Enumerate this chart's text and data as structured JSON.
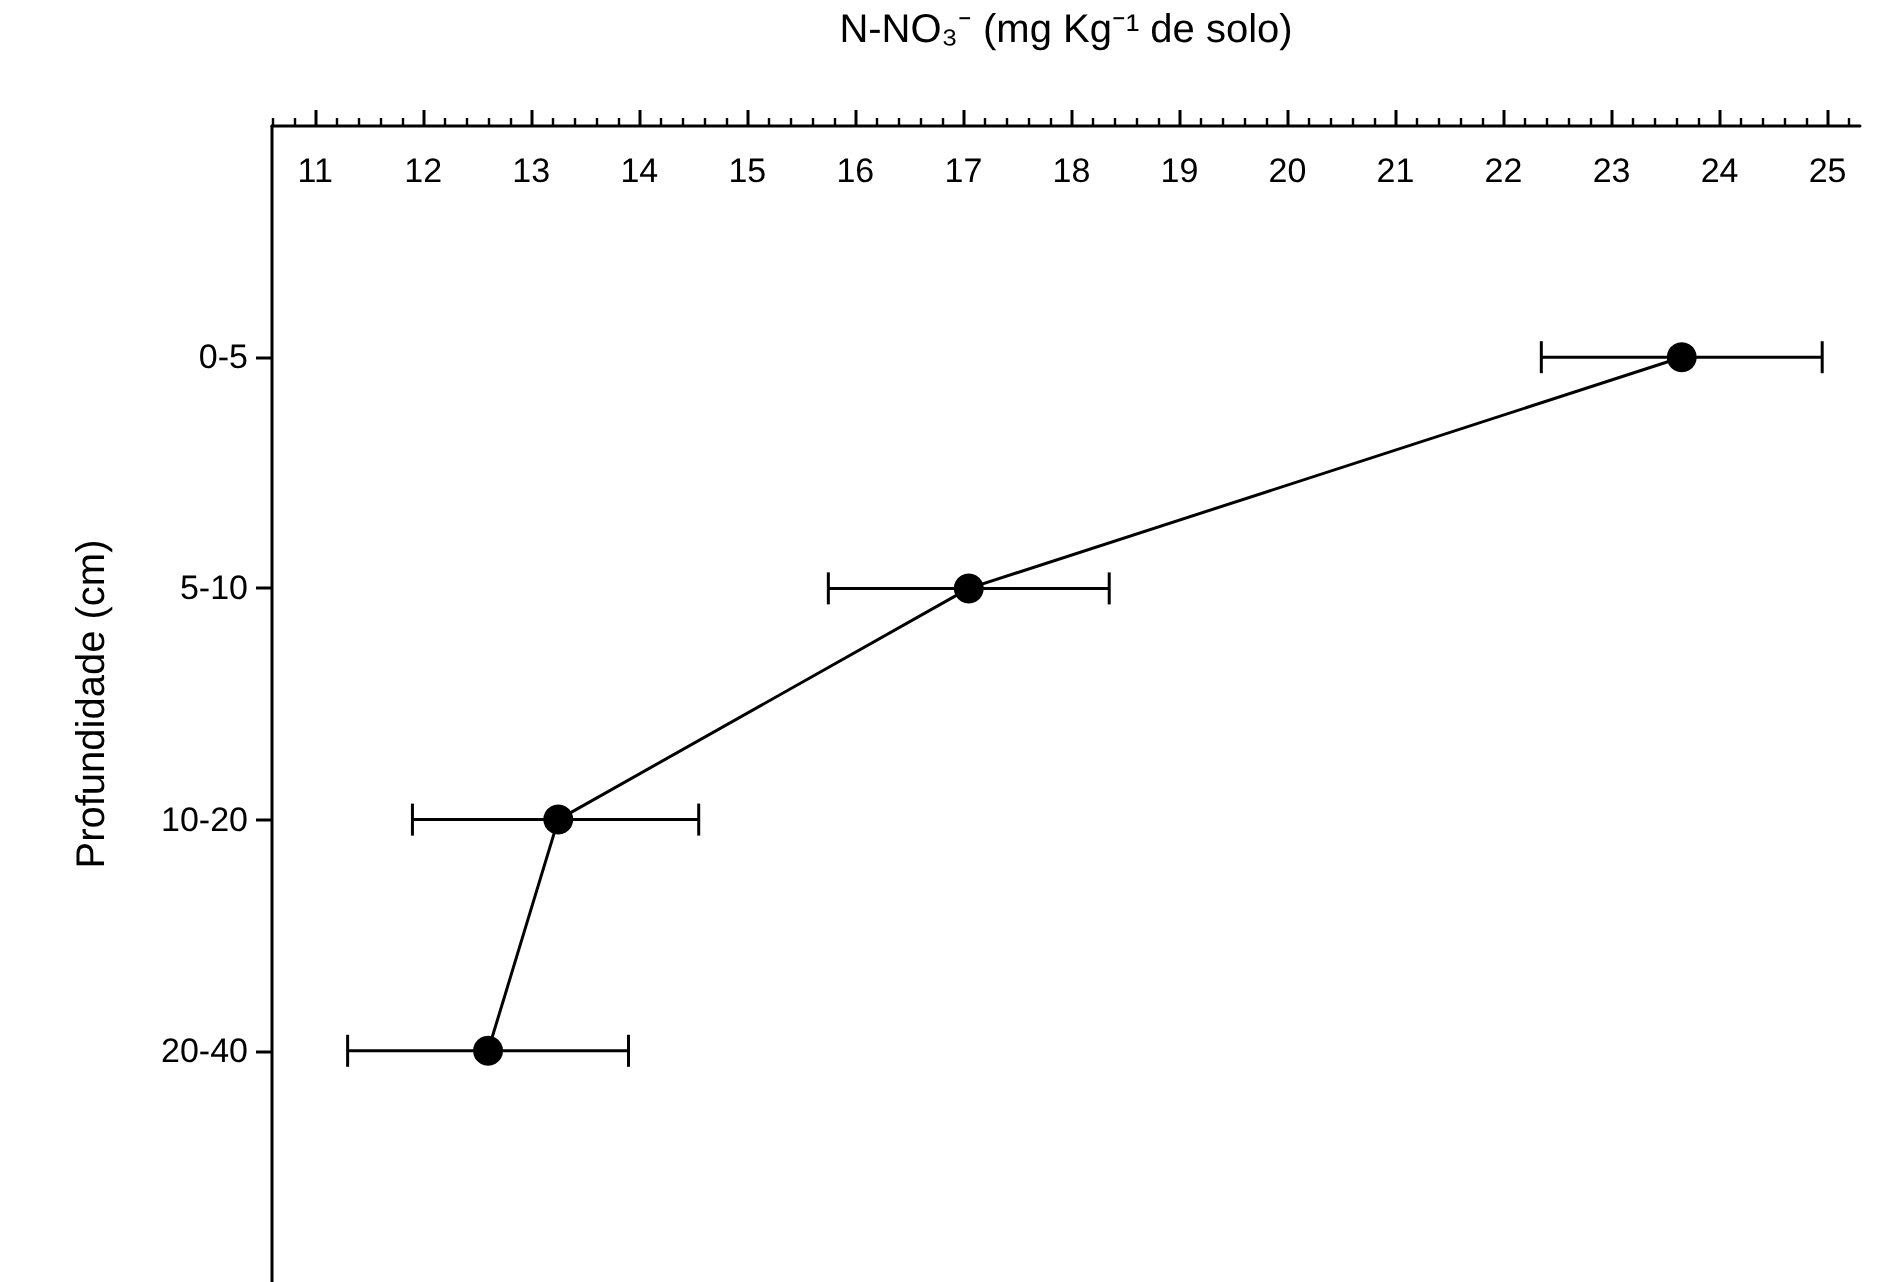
{
  "chart_data": {
    "type": "line",
    "orientation": "horizontal",
    "xlabel": "N-NO₃⁻ (mg Kg⁻¹ de solo)",
    "ylabel": "Profundidade (cm)",
    "categories": [
      "0-5",
      "5-10",
      "10-20",
      "20-40"
    ],
    "series": [
      {
        "color": "#000000",
        "values": [
          23.65,
          17.05,
          13.25,
          12.6
        ],
        "errors": [
          [
            22.35,
            24.95
          ],
          [
            15.75,
            18.35
          ],
          [
            11.9,
            14.55
          ],
          [
            11.3,
            13.9
          ]
        ]
      }
    ],
    "marker": "circle",
    "line_style": "solid",
    "grid": false,
    "xlim": [
      10.6,
      25.3
    ],
    "xticks": [
      {
        "value": 10.6,
        "label": null
      },
      {
        "value": 10.8,
        "label": null
      },
      11,
      {
        "value": 11.2,
        "label": null
      },
      {
        "value": 11.4,
        "label": null
      },
      {
        "value": 11.6,
        "label": null
      },
      {
        "value": 11.8,
        "label": null
      },
      12,
      {
        "value": 12.2,
        "label": null
      },
      {
        "value": 12.4,
        "label": null
      },
      {
        "value": 12.6,
        "label": null
      },
      {
        "value": 12.8,
        "label": null
      },
      13,
      {
        "value": 13.2,
        "label": null
      },
      {
        "value": 13.4,
        "label": null
      },
      {
        "value": 13.6,
        "label": null
      },
      {
        "value": 13.8,
        "label": null
      },
      14,
      {
        "value": 14.2,
        "label": null
      },
      {
        "value": 14.4,
        "label": null
      },
      {
        "value": 14.6,
        "label": null
      },
      {
        "value": 14.8,
        "label": null
      },
      15,
      {
        "value": 15.2,
        "label": null
      },
      {
        "value": 15.4,
        "label": null
      },
      {
        "value": 15.6,
        "label": null
      },
      {
        "value": 15.8,
        "label": null
      },
      16,
      {
        "value": 16.2,
        "label": null
      },
      {
        "value": 16.4,
        "label": null
      },
      {
        "value": 16.6,
        "label": null
      },
      {
        "value": 16.8,
        "label": null
      },
      17,
      {
        "value": 17.2,
        "label": null
      },
      {
        "value": 17.4,
        "label": null
      },
      {
        "value": 17.6,
        "label": null
      },
      {
        "value": 17.8,
        "label": null
      },
      18,
      {
        "value": 18.2,
        "label": null
      },
      {
        "value": 18.4,
        "label": null
      },
      {
        "value": 18.6,
        "label": null
      },
      {
        "value": 18.8,
        "label": null
      },
      19,
      {
        "value": 19.2,
        "label": null
      },
      {
        "value": 19.4,
        "label": null
      },
      {
        "value": 19.6,
        "label": null
      },
      {
        "value": 19.8,
        "label": null
      },
      20,
      {
        "value": 20.2,
        "label": null
      },
      {
        "value": 20.4,
        "label": null
      },
      {
        "value": 20.6,
        "label": null
      },
      {
        "value": 20.8,
        "label": null
      },
      21,
      {
        "value": 21.2,
        "label": null
      },
      {
        "value": 21.4,
        "label": null
      },
      {
        "value": 21.6,
        "label": null
      },
      {
        "value": 21.8,
        "label": null
      },
      22,
      {
        "value": 22.2,
        "label": null
      },
      {
        "value": 22.4,
        "label": null
      },
      {
        "value": 22.6,
        "label": null
      },
      {
        "value": 22.8,
        "label": null
      },
      23,
      {
        "value": 23.2,
        "label": null
      },
      {
        "value": 23.4,
        "label": null
      },
      {
        "value": 23.6,
        "label": null
      },
      {
        "value": 23.8,
        "label": null
      },
      24,
      {
        "value": 24.2,
        "label": null
      },
      {
        "value": 24.4,
        "label": null
      },
      {
        "value": 24.6,
        "label": null
      },
      {
        "value": 24.8,
        "label": null
      },
      25,
      {
        "value": 25.2,
        "label": null
      }
    ]
  }
}
